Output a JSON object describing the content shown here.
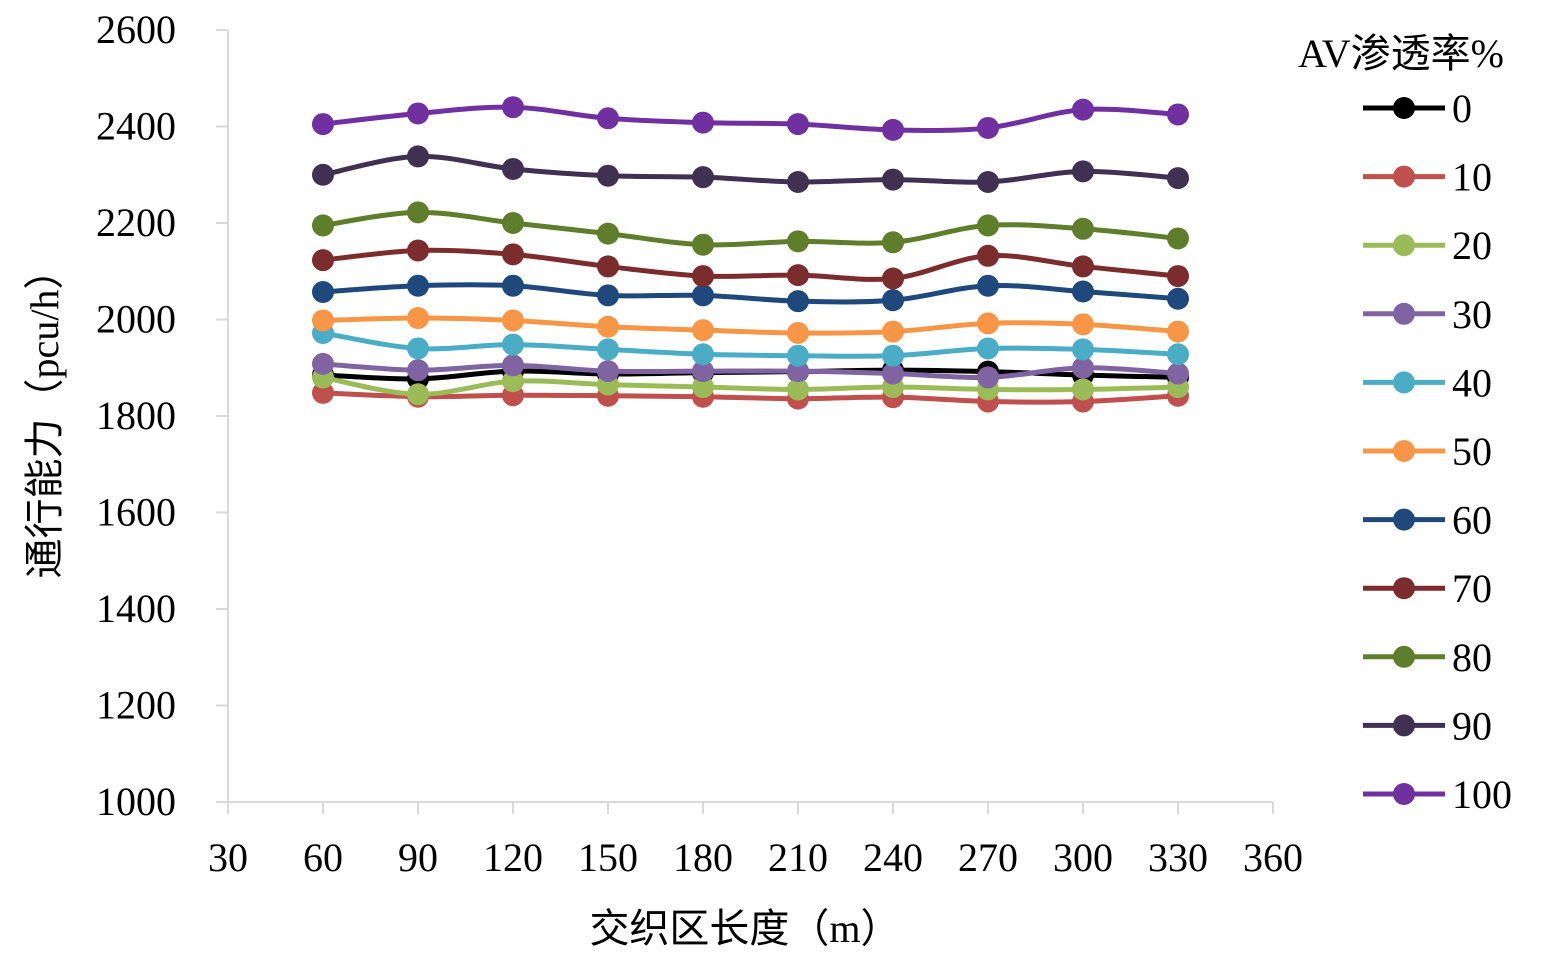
{
  "chart_data": {
    "type": "line",
    "title": "",
    "xlabel": "交织区长度（m）",
    "ylabel": "通行能力（pcu/h）",
    "xlim": [
      30,
      360
    ],
    "ylim": [
      1000,
      2600
    ],
    "x_ticks": [
      "30",
      "60",
      "90",
      "120",
      "150",
      "180",
      "210",
      "240",
      "270",
      "300",
      "330",
      "360"
    ],
    "y_ticks": [
      "1000",
      "1200",
      "1400",
      "1600",
      "1800",
      "2000",
      "2200",
      "2400",
      "2600"
    ],
    "x": [
      60,
      90,
      120,
      150,
      180,
      210,
      240,
      270,
      300,
      330
    ],
    "grid": false,
    "legend_title": "AV渗透率%",
    "legend_position": "right",
    "series": [
      {
        "name": "0",
        "color": "#000000",
        "values": [
          1885,
          1877,
          1893,
          1887,
          1890,
          1892,
          1895,
          1892,
          1885,
          1880
        ]
      },
      {
        "name": "10",
        "color": "#c0504d",
        "values": [
          1848,
          1840,
          1843,
          1842,
          1840,
          1836,
          1839,
          1830,
          1830,
          1842
        ]
      },
      {
        "name": "20",
        "color": "#9bbb59",
        "values": [
          1880,
          1845,
          1872,
          1865,
          1860,
          1855,
          1860,
          1855,
          1855,
          1860
        ]
      },
      {
        "name": "30",
        "color": "#8064a2",
        "values": [
          1908,
          1895,
          1905,
          1893,
          1893,
          1893,
          1888,
          1880,
          1900,
          1888
        ]
      },
      {
        "name": "40",
        "color": "#4bacc6",
        "values": [
          1972,
          1940,
          1948,
          1938,
          1928,
          1925,
          1925,
          1940,
          1938,
          1928
        ]
      },
      {
        "name": "50",
        "color": "#f79646",
        "values": [
          1998,
          2003,
          1998,
          1985,
          1978,
          1972,
          1975,
          1992,
          1990,
          1975
        ]
      },
      {
        "name": "60",
        "color": "#1f497d",
        "values": [
          2057,
          2070,
          2070,
          2050,
          2050,
          2038,
          2040,
          2070,
          2058,
          2043
        ]
      },
      {
        "name": "70",
        "color": "#7b2c2c",
        "values": [
          2123,
          2143,
          2135,
          2110,
          2090,
          2092,
          2085,
          2132,
          2110,
          2090
        ]
      },
      {
        "name": "80",
        "color": "#5e7e2c",
        "values": [
          2195,
          2222,
          2200,
          2178,
          2155,
          2162,
          2160,
          2195,
          2188,
          2168
        ]
      },
      {
        "name": "90",
        "color": "#403152",
        "values": [
          2300,
          2338,
          2312,
          2298,
          2295,
          2285,
          2290,
          2285,
          2307,
          2293
        ]
      },
      {
        "name": "100",
        "color": "#7030a0",
        "values": [
          2405,
          2427,
          2440,
          2417,
          2408,
          2405,
          2393,
          2397,
          2435,
          2425
        ]
      }
    ]
  }
}
